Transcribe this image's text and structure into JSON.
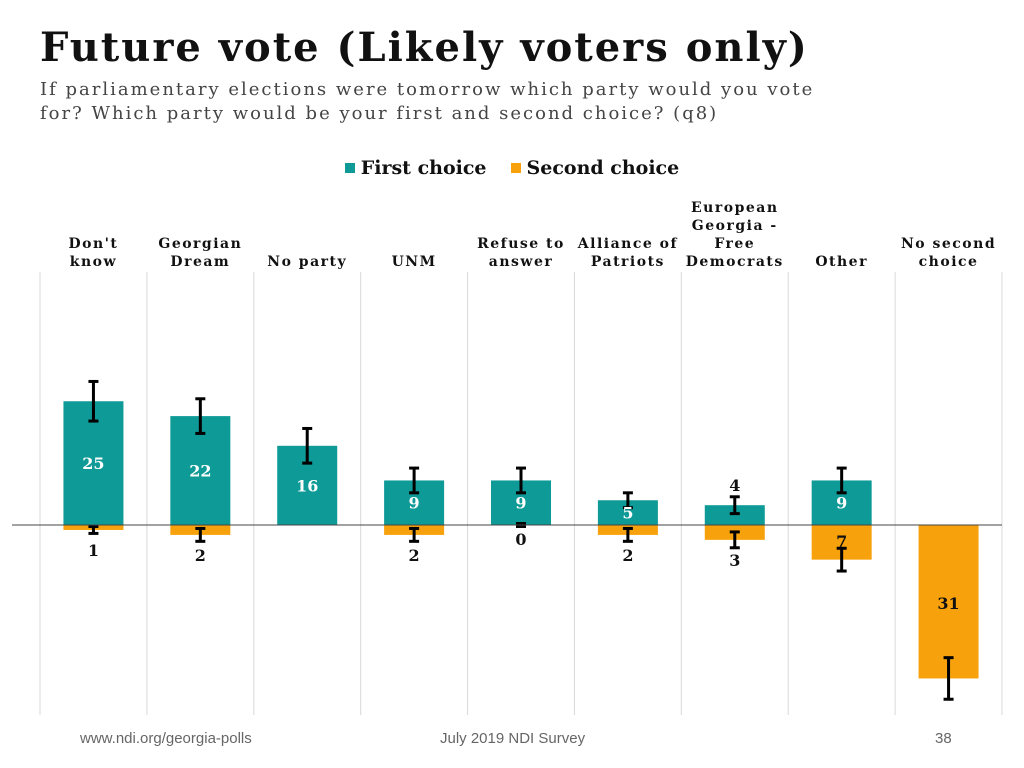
{
  "header": {
    "title": "Future vote (Likely voters only)",
    "subtitle": "If parliamentary elections were tomorrow which party would you vote for? Which party would be your first and second choice? (q8)"
  },
  "legend": {
    "first_label": "First choice",
    "second_label": "Second choice"
  },
  "colors": {
    "first": "#0e9a96",
    "second": "#f7a10c",
    "error_bar": "#000000",
    "grid": "#d9d9d9"
  },
  "chart_data": {
    "type": "bar",
    "title": "Future vote (Likely voters only)",
    "categories": [
      [
        "Don't",
        "know"
      ],
      [
        "Georgian",
        "Dream"
      ],
      [
        "No party"
      ],
      [
        "UNM"
      ],
      [
        "Refuse to",
        "answer"
      ],
      [
        "Alliance of",
        "Patriots"
      ],
      [
        "European",
        "Georgia -",
        "Free",
        "Democrats"
      ],
      [
        "Other"
      ],
      [
        "No second",
        "choice"
      ]
    ],
    "series": [
      {
        "name": "First choice",
        "values": [
          25,
          22,
          16,
          9,
          9,
          5,
          4,
          9,
          null
        ],
        "error_margin": [
          4,
          3.5,
          3.5,
          2.5,
          2.5,
          1.5,
          1.7,
          2.5,
          null
        ]
      },
      {
        "name": "Second choice",
        "values": [
          1,
          2,
          null,
          2,
          0,
          2,
          3,
          7,
          31
        ],
        "error_margin": [
          0.7,
          1.3,
          null,
          1.3,
          0.3,
          1.3,
          1.6,
          2.3,
          4.2
        ]
      }
    ],
    "value_labels": {
      "first": [
        "25",
        "22",
        "16",
        "9",
        "9",
        "5",
        "4",
        "9",
        ""
      ],
      "second": [
        "1",
        "2",
        "",
        "2",
        "0",
        "2",
        "3",
        "7",
        "31"
      ]
    },
    "ylim": [
      -38,
      50
    ],
    "note": "First choice shown above baseline, second choice below baseline"
  },
  "footer": {
    "url": "www.ndi.org/georgia-polls",
    "survey": "July 2019 NDI Survey",
    "page": "38"
  }
}
